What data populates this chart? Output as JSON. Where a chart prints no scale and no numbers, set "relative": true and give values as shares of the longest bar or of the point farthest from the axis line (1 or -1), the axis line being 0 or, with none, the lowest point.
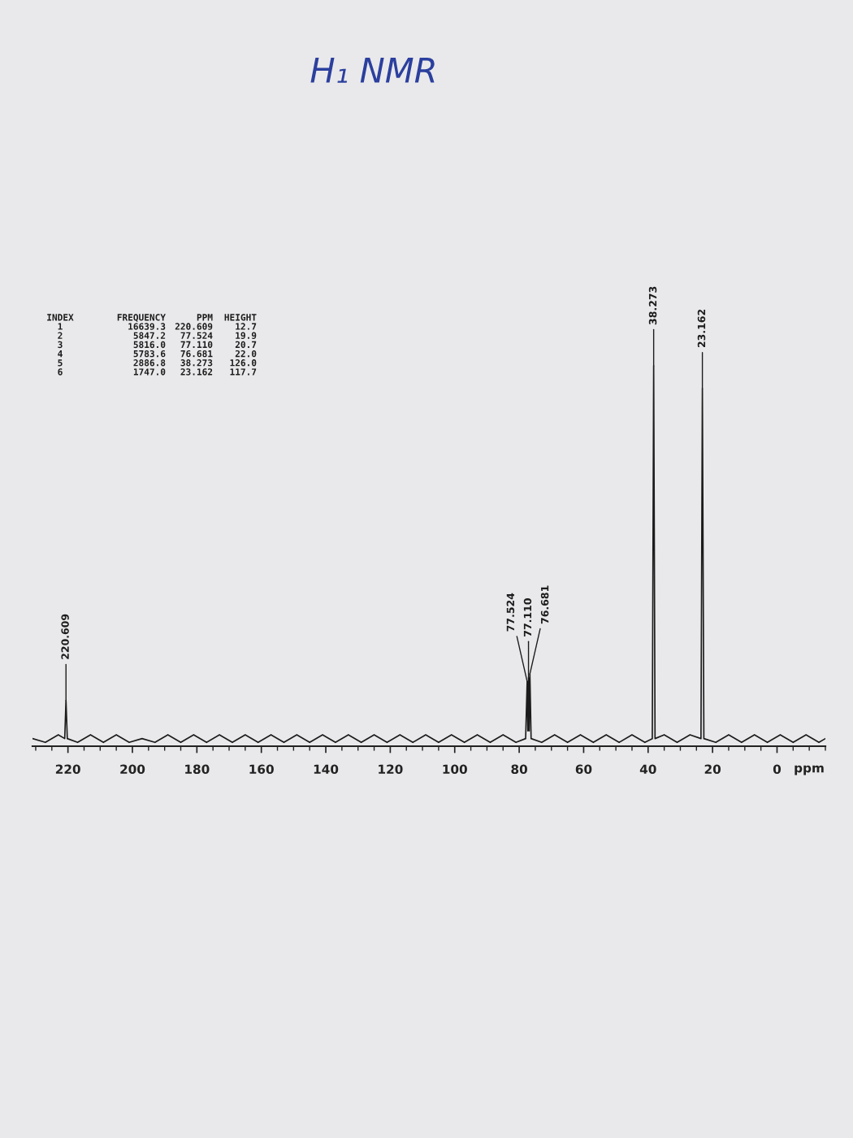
{
  "chart_data": {
    "type": "line",
    "title": "H₁ NMR",
    "xlabel": "ppm",
    "relative": true,
    "x": [
      231,
      227,
      223,
      221.0,
      220.609,
      220.2,
      217,
      213,
      209,
      205,
      201,
      197,
      193,
      189,
      185,
      181,
      177,
      173,
      169,
      165,
      161,
      157,
      153,
      149,
      145,
      141,
      137,
      133,
      129,
      125,
      121,
      117,
      113,
      109,
      105,
      101,
      97,
      93,
      89,
      85,
      81,
      78.0,
      77.524,
      77.32,
      77.11,
      76.9,
      76.681,
      76.3,
      73,
      69,
      65,
      61,
      57,
      53,
      49,
      45,
      41,
      38.7,
      38.273,
      37.85,
      35,
      31,
      27,
      23.6,
      23.162,
      22.7,
      19,
      15,
      11,
      7,
      3,
      -1,
      -5,
      -9,
      -13,
      -15
    ],
    "series": [
      {
        "color": "#1c1c1c",
        "values": [
          0.02,
          0.01,
          0.03,
          0.02,
          0.12,
          0.02,
          0.01,
          0.03,
          0.01,
          0.03,
          0.01,
          0.02,
          0.01,
          0.03,
          0.01,
          0.03,
          0.01,
          0.03,
          0.01,
          0.03,
          0.01,
          0.03,
          0.01,
          0.03,
          0.01,
          0.03,
          0.01,
          0.03,
          0.01,
          0.03,
          0.01,
          0.03,
          0.01,
          0.03,
          0.01,
          0.03,
          0.01,
          0.03,
          0.01,
          0.03,
          0.01,
          0.02,
          0.17,
          0.04,
          0.18,
          0.04,
          0.19,
          0.02,
          0.01,
          0.03,
          0.01,
          0.03,
          0.01,
          0.03,
          0.01,
          0.03,
          0.01,
          0.02,
          1,
          0.02,
          0.03,
          0.01,
          0.03,
          0.02,
          0.94,
          0.02,
          0.01,
          0.03,
          0.01,
          0.03,
          0.01,
          0.03,
          0.01,
          0.03,
          0.01,
          0.02
        ]
      }
    ],
    "xlim": [
      231,
      -15
    ],
    "xticks": [
      {
        "value": 230,
        "label": null
      },
      {
        "value": 225,
        "label": null
      },
      220,
      {
        "value": 215,
        "label": null
      },
      {
        "value": 210,
        "label": null
      },
      {
        "value": 205,
        "label": null
      },
      200,
      {
        "value": 195,
        "label": null
      },
      {
        "value": 190,
        "label": null
      },
      {
        "value": 185,
        "label": null
      },
      180,
      {
        "value": 175,
        "label": null
      },
      {
        "value": 170,
        "label": null
      },
      {
        "value": 165,
        "label": null
      },
      160,
      {
        "value": 155,
        "label": null
      },
      {
        "value": 150,
        "label": null
      },
      {
        "value": 145,
        "label": null
      },
      140,
      {
        "value": 135,
        "label": null
      },
      {
        "value": 130,
        "label": null
      },
      {
        "value": 125,
        "label": null
      },
      120,
      {
        "value": 115,
        "label": null
      },
      {
        "value": 110,
        "label": null
      },
      {
        "value": 105,
        "label": null
      },
      100,
      {
        "value": 95,
        "label": null
      },
      {
        "value": 90,
        "label": null
      },
      {
        "value": 85,
        "label": null
      },
      80,
      {
        "value": 75,
        "label": null
      },
      {
        "value": 70,
        "label": null
      },
      {
        "value": 65,
        "label": null
      },
      60,
      {
        "value": 55,
        "label": null
      },
      {
        "value": 50,
        "label": null
      },
      {
        "value": 45,
        "label": null
      },
      40,
      {
        "value": 35,
        "label": null
      },
      {
        "value": 30,
        "label": null
      },
      {
        "value": 25,
        "label": null
      },
      20,
      {
        "value": 15,
        "label": null
      },
      {
        "value": 10,
        "label": null
      },
      {
        "value": 5,
        "label": null
      },
      0,
      {
        "value": -5,
        "label": null
      },
      {
        "value": -10,
        "label": null
      },
      {
        "value": -15,
        "label": null
      }
    ],
    "tick_labels": "x",
    "annotations": [
      {
        "text": "220.609",
        "x": 220.609,
        "y": 0.12
      },
      {
        "text": "77.524",
        "x": 77.524,
        "y": 0.17
      },
      {
        "text": "77.110",
        "x": 77.11,
        "y": 0.18
      },
      {
        "text": "76.681",
        "x": 76.681,
        "y": 0.19
      },
      {
        "text": "38.273",
        "x": 38.273,
        "y": 1
      },
      {
        "text": "23.162",
        "x": 23.162,
        "y": 0.94
      },
      "INDEX\n1\n2\n3\n4\n5\n6",
      "FREQUENCY\n16639.3\n5847.2\n5816.0\n5783.6\n2886.8\n1747.0",
      "PPM\n220.609\n77.524\n77.110\n76.681\n38.273\n23.162",
      "HEIGHT\n12.7\n19.9\n20.7\n22.0\n126.0\n117.7"
    ]
  }
}
